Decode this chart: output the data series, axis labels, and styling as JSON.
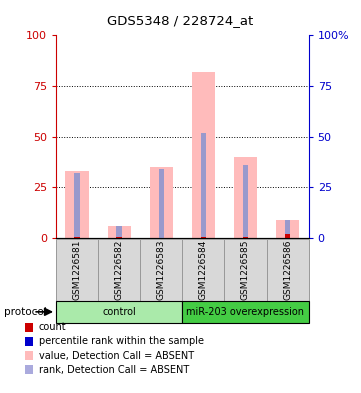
{
  "title": "GDS5348 / 228724_at",
  "samples": [
    "GSM1226581",
    "GSM1226582",
    "GSM1226583",
    "GSM1226584",
    "GSM1226585",
    "GSM1226586"
  ],
  "pink_bars": [
    33,
    6,
    35,
    82,
    40,
    9
  ],
  "blue_bars": [
    32,
    6,
    34,
    52,
    36,
    9
  ],
  "red_vals": [
    0.5,
    0.5,
    0,
    0.5,
    0.5,
    2
  ],
  "groups": [
    {
      "label": "control",
      "start": 0,
      "end": 3,
      "color": "#aaeaaa"
    },
    {
      "label": "miR-203 overexpression",
      "start": 3,
      "end": 6,
      "color": "#44cc44"
    }
  ],
  "ylim": [
    0,
    100
  ],
  "yticks": [
    0,
    25,
    50,
    75,
    100
  ],
  "left_axis_color": "#cc0000",
  "right_axis_color": "#0000cc",
  "pink_color": "#ffbbbb",
  "blue_bar_color": "#9999cc",
  "red_color": "#cc0000",
  "light_blue_color": "#aaaadd",
  "bg_color": "#d8d8d8",
  "plot_bg": "#ffffff",
  "right_ytick_labels": [
    "100%",
    "75",
    "50",
    "25",
    "0"
  ],
  "legend_items": [
    {
      "label": "count",
      "color": "#cc0000"
    },
    {
      "label": "percentile rank within the sample",
      "color": "#0000cc"
    },
    {
      "label": "value, Detection Call = ABSENT",
      "color": "#ffbbbb"
    },
    {
      "label": "rank, Detection Call = ABSENT",
      "color": "#aaaadd"
    }
  ]
}
